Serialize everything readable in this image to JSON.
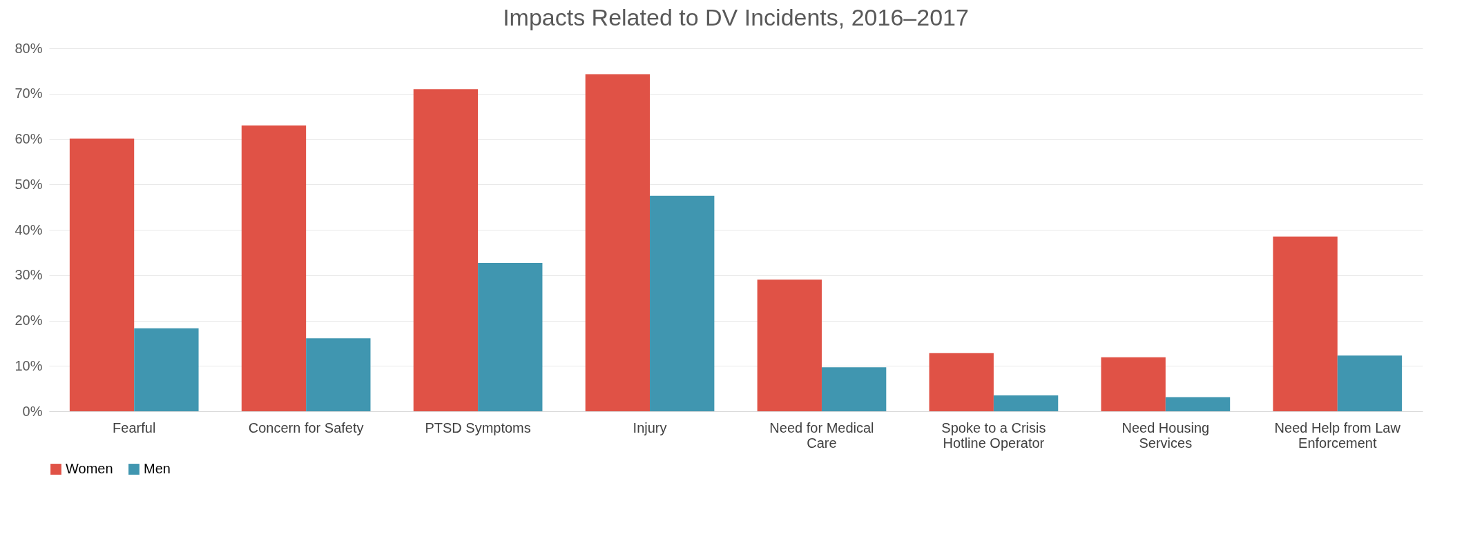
{
  "chart_data": {
    "type": "bar",
    "title": "Impacts Related to DV Incidents, 2016–2017",
    "categories": [
      "Fearful",
      "Concern for Safety",
      "PTSD Symptoms",
      "Injury",
      "Need for Medical Care",
      "Spoke to a Crisis Hotline Operator",
      "Need Housing Services",
      "Need Help from Law Enforcement"
    ],
    "series": [
      {
        "name": "Women",
        "color": "#e05246",
        "values": [
          60.1,
          63.0,
          71.0,
          74.3,
          29.0,
          12.8,
          11.9,
          38.5
        ]
      },
      {
        "name": "Men",
        "color": "#4096b0",
        "values": [
          18.3,
          16.1,
          32.7,
          47.5,
          9.7,
          3.5,
          3.1,
          12.3
        ]
      }
    ],
    "ylim": [
      0,
      80
    ],
    "yticks": [
      {
        "value": 0,
        "label": "0%"
      },
      {
        "value": 10,
        "label": "10%"
      },
      {
        "value": 20,
        "label": "20%"
      },
      {
        "value": 30,
        "label": "30%"
      },
      {
        "value": 40,
        "label": "40%"
      },
      {
        "value": 50,
        "label": "50%"
      },
      {
        "value": 60,
        "label": "60%"
      },
      {
        "value": 70,
        "label": "70%"
      },
      {
        "value": 80,
        "label": "80%"
      }
    ],
    "grid": "y",
    "legend": "bottom"
  }
}
